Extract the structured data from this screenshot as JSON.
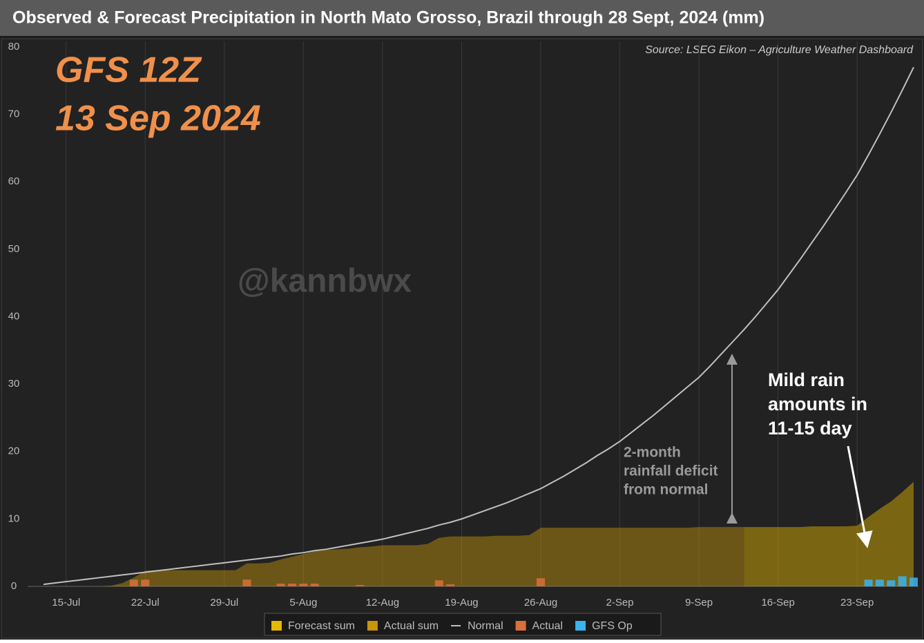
{
  "chart_data": {
    "type": "combo",
    "title": "Observed & Forecast Precipitation in North Mato Grosso, Brazil through 28 Sept, 2024 (mm)",
    "source": "Source: LSEG Eikon – Agriculture Weather Dashboard",
    "model_label": [
      "GFS 12Z",
      "13 Sep 2024"
    ],
    "watermark": "@kannbwx",
    "deficit_note": [
      "2-month",
      "rainfall deficit",
      "from normal"
    ],
    "rain_note": [
      "Mild rain",
      "amounts in",
      "11-15 day"
    ],
    "categories": [
      null,
      null,
      "15-Jul",
      null,
      null,
      null,
      null,
      null,
      null,
      "22-Jul",
      null,
      null,
      null,
      null,
      null,
      null,
      "29-Jul",
      null,
      null,
      null,
      null,
      null,
      null,
      "5-Aug",
      null,
      null,
      null,
      null,
      null,
      null,
      "12-Aug",
      null,
      null,
      null,
      null,
      null,
      null,
      "19-Aug",
      null,
      null,
      null,
      null,
      null,
      null,
      "26-Aug",
      null,
      null,
      null,
      null,
      null,
      null,
      "2-Sep",
      null,
      null,
      null,
      null,
      null,
      null,
      "9-Sep",
      null,
      null,
      null,
      null,
      null,
      null,
      "16-Sep",
      null,
      null,
      null,
      null,
      null,
      null,
      "23-Sep",
      null,
      null,
      null,
      null,
      null
    ],
    "ylim": [
      0,
      80
    ],
    "yticks": [
      0,
      10,
      20,
      30,
      40,
      50,
      60,
      70,
      80
    ],
    "grid": "x",
    "series": [
      {
        "name": "Forecast sum",
        "kind": "area",
        "color": "#e6b800",
        "values": [
          null,
          null,
          null,
          null,
          null,
          null,
          null,
          null,
          null,
          null,
          null,
          null,
          null,
          null,
          null,
          null,
          null,
          null,
          null,
          null,
          null,
          null,
          null,
          null,
          null,
          null,
          null,
          null,
          null,
          null,
          null,
          null,
          null,
          null,
          null,
          null,
          null,
          null,
          null,
          null,
          null,
          null,
          null,
          null,
          null,
          null,
          null,
          null,
          null,
          null,
          null,
          null,
          null,
          null,
          null,
          null,
          null,
          null,
          null,
          null,
          null,
          null,
          8.8,
          8.8,
          8.8,
          8.8,
          8.8,
          8.8,
          8.9,
          8.9,
          8.9,
          8.9,
          9.0,
          10.3,
          11.5,
          12.6,
          14.0,
          15.5
        ]
      },
      {
        "name": "Actual sum",
        "kind": "area",
        "color": "#c8960a",
        "values": [
          0,
          0,
          0,
          0,
          0,
          0,
          0.1,
          0.5,
          1.3,
          2.3,
          2.4,
          2.4,
          2.4,
          2.4,
          2.4,
          2.4,
          2.4,
          2.4,
          3.4,
          3.4,
          3.5,
          4.0,
          4.4,
          4.8,
          5.2,
          5.4,
          5.5,
          5.6,
          5.8,
          5.9,
          6.1,
          6.1,
          6.1,
          6.1,
          6.3,
          7.2,
          7.4,
          7.4,
          7.4,
          7.4,
          7.5,
          7.5,
          7.5,
          7.6,
          8.7,
          8.7,
          8.7,
          8.7,
          8.7,
          8.7,
          8.7,
          8.7,
          8.7,
          8.7,
          8.7,
          8.7,
          8.7,
          8.7,
          8.8,
          8.8,
          8.8,
          8.8,
          8.8,
          null,
          null,
          null,
          null,
          null,
          null,
          null,
          null,
          null,
          null,
          null,
          null,
          null,
          null,
          null
        ]
      },
      {
        "name": "Normal",
        "kind": "line",
        "color": "#c0c0c0",
        "values": [
          0.3,
          0.5,
          0.7,
          0.9,
          1.1,
          1.3,
          1.5,
          1.7,
          1.9,
          2.1,
          2.3,
          2.5,
          2.7,
          2.9,
          3.1,
          3.3,
          3.5,
          3.7,
          3.9,
          4.1,
          4.3,
          4.5,
          4.8,
          5.0,
          5.3,
          5.5,
          5.8,
          6.1,
          6.4,
          6.7,
          7.0,
          7.4,
          7.8,
          8.2,
          8.6,
          9.1,
          9.5,
          10.0,
          10.6,
          11.2,
          11.8,
          12.4,
          13.1,
          13.8,
          14.5,
          15.4,
          16.3,
          17.3,
          18.3,
          19.4,
          20.4,
          21.5,
          22.8,
          24.1,
          25.4,
          26.8,
          28.2,
          29.6,
          31.0,
          32.7,
          34.5,
          36.3,
          38.1,
          40.0,
          42.0,
          44.0,
          46.3,
          48.6,
          51.0,
          53.4,
          55.9,
          58.4,
          61.0,
          64.0,
          67.1,
          70.3,
          73.6,
          77.0
        ]
      },
      {
        "name": "Actual",
        "kind": "bar",
        "color": "#d9703a",
        "values": [
          null,
          null,
          null,
          null,
          null,
          null,
          null,
          null,
          1.0,
          1.0,
          null,
          null,
          null,
          null,
          null,
          null,
          null,
          null,
          1.0,
          null,
          null,
          0.4,
          0.4,
          0.4,
          0.4,
          null,
          null,
          null,
          0.2,
          null,
          null,
          null,
          null,
          null,
          null,
          0.9,
          0.3,
          null,
          null,
          null,
          null,
          null,
          null,
          null,
          1.2,
          null,
          null,
          null,
          null,
          null,
          null,
          null,
          null,
          null,
          null,
          null,
          null,
          null,
          null,
          null,
          null,
          null,
          null,
          null,
          null,
          null,
          null,
          null,
          null,
          null,
          null,
          null,
          null,
          null,
          null,
          null,
          null,
          null
        ]
      },
      {
        "name": "GFS Op",
        "kind": "bar",
        "color": "#3ab4f0",
        "values": [
          null,
          null,
          null,
          null,
          null,
          null,
          null,
          null,
          null,
          null,
          null,
          null,
          null,
          null,
          null,
          null,
          null,
          null,
          null,
          null,
          null,
          null,
          null,
          null,
          null,
          null,
          null,
          null,
          null,
          null,
          null,
          null,
          null,
          null,
          null,
          null,
          null,
          null,
          null,
          null,
          null,
          null,
          null,
          null,
          null,
          null,
          null,
          null,
          null,
          null,
          null,
          null,
          null,
          null,
          null,
          null,
          null,
          null,
          null,
          null,
          null,
          null,
          null,
          null,
          null,
          null,
          null,
          null,
          null,
          null,
          null,
          null,
          null,
          1.0,
          1.0,
          0.9,
          1.5,
          1.3
        ]
      }
    ]
  }
}
